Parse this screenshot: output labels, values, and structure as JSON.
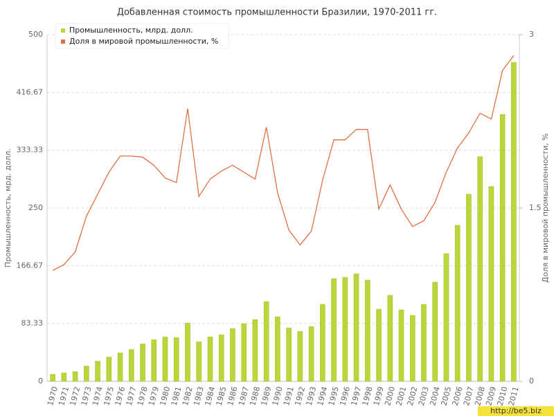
{
  "chart_data": {
    "type": "bar-line",
    "title": "Добавленная стоимость промышленности Бразилии, 1970-2011 гг.",
    "y_label": "Промышленность, мрд. долл.",
    "y2_label": "Доля в мировой промышленности, %",
    "categories": [
      "1970",
      "1971",
      "1972",
      "1973",
      "1974",
      "1975",
      "1976",
      "1977",
      "1978",
      "1979",
      "1980",
      "1981",
      "1982",
      "1983",
      "1984",
      "1985",
      "1986",
      "1987",
      "1988",
      "1989",
      "1990",
      "1991",
      "1992",
      "1993",
      "1994",
      "1995",
      "1996",
      "1997",
      "1998",
      "1999",
      "2000",
      "2001",
      "2002",
      "2003",
      "2004",
      "2005",
      "2006",
      "2007",
      "2008",
      "2009",
      "2010",
      "2011"
    ],
    "series": [
      {
        "name": "Промышленность, млрд. долл.",
        "type": "bar",
        "color": "#b9d63a",
        "values": [
          10,
          12,
          14,
          22,
          29,
          35,
          41,
          46,
          54,
          60,
          64,
          63,
          84,
          57,
          64,
          67,
          76,
          83,
          89,
          115,
          93,
          77,
          72,
          79,
          111,
          148,
          150,
          155,
          146,
          104,
          124,
          103,
          95,
          111,
          143,
          184,
          225,
          270,
          324,
          281,
          385,
          460
        ]
      },
      {
        "name": "Доля в мировой промышленности, %",
        "type": "line",
        "color": "#e0703f",
        "axis": "y2",
        "values": [
          0.96,
          1.01,
          1.12,
          1.43,
          1.62,
          1.81,
          1.95,
          1.95,
          1.94,
          1.87,
          1.76,
          1.72,
          2.36,
          1.6,
          1.75,
          1.82,
          1.87,
          1.81,
          1.75,
          2.2,
          1.63,
          1.31,
          1.18,
          1.3,
          1.74,
          2.09,
          2.09,
          2.18,
          2.18,
          1.49,
          1.7,
          1.49,
          1.34,
          1.39,
          1.55,
          1.81,
          2.02,
          2.15,
          2.32,
          2.27,
          2.69,
          2.82
        ]
      }
    ],
    "ylim": [
      0,
      500
    ],
    "yticks": [
      0,
      83.33,
      166.67,
      250,
      333.33,
      416.67,
      500
    ],
    "y2lim": [
      0,
      3
    ],
    "y2ticks": [
      0,
      1.5,
      3
    ],
    "grid": true,
    "legend": "top-left",
    "watermark": "http://be5.biz"
  }
}
